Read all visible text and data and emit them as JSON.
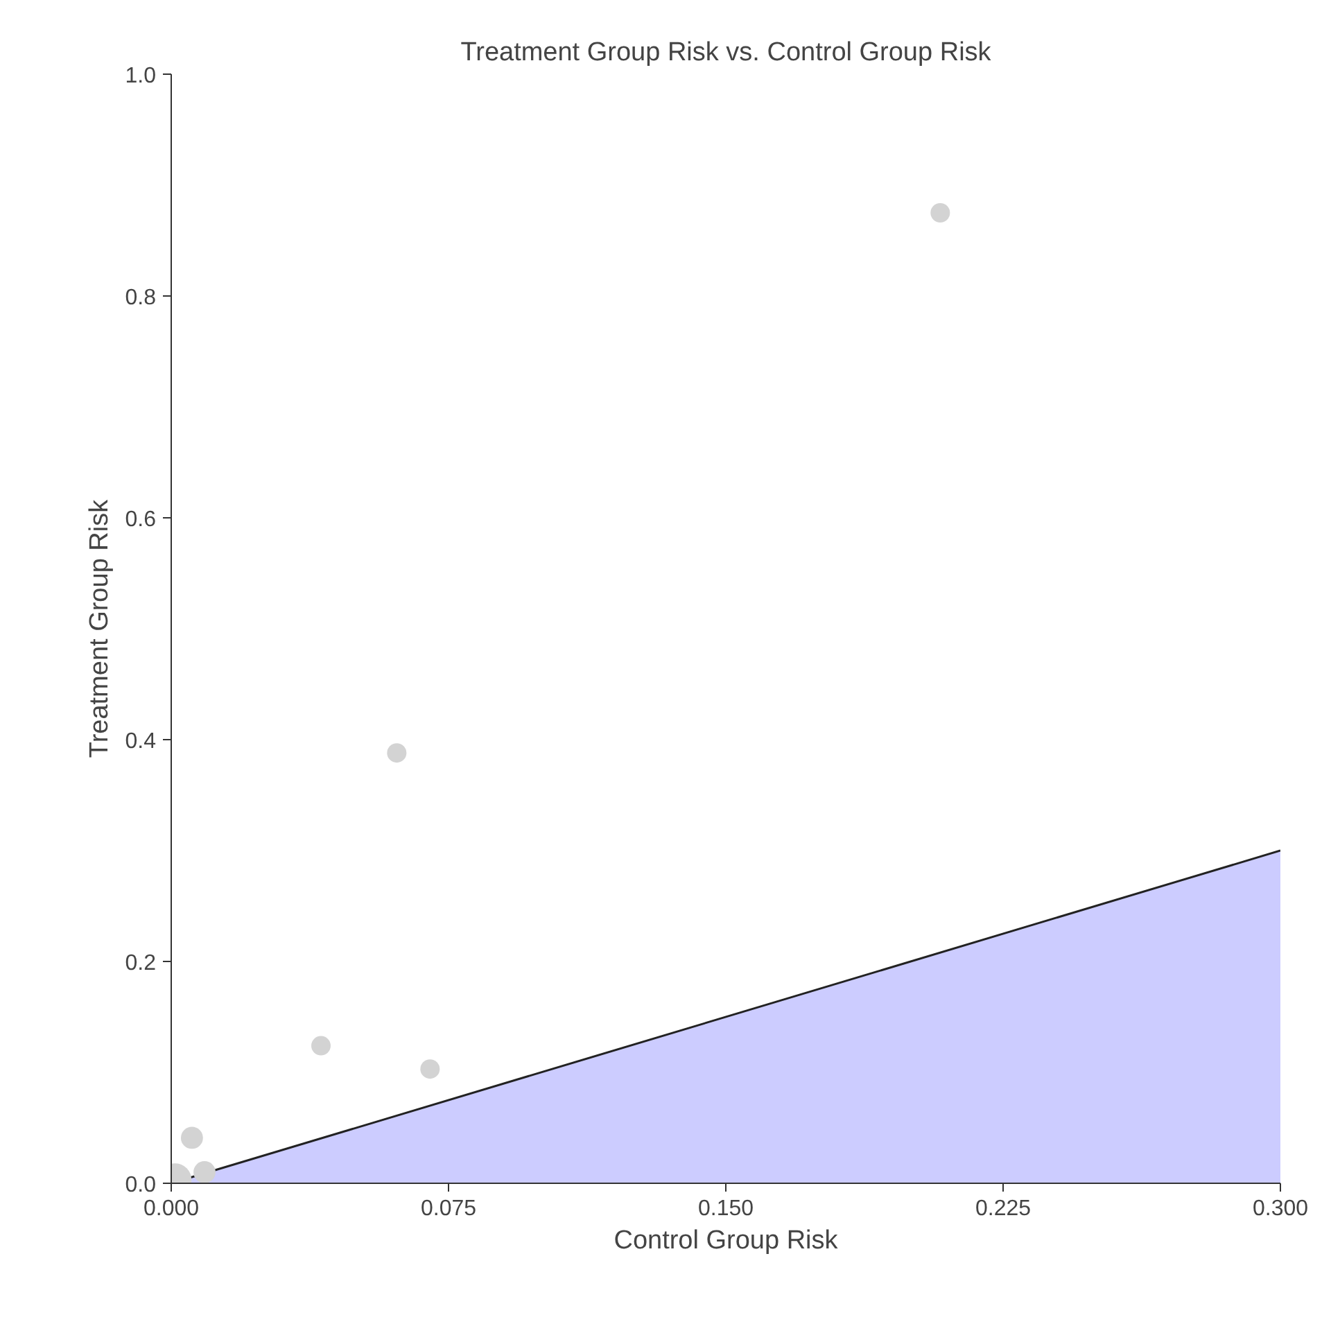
{
  "chart_data": {
    "type": "bubble",
    "title": "Treatment Group Risk vs. Control Group Risk",
    "xlabel": "Control Group Risk",
    "ylabel": "Treatment Group Risk",
    "xlim": [
      0,
      0.3
    ],
    "xticks": [
      {
        "value": 0,
        "label": "0.000"
      },
      {
        "value": 0.075,
        "label": "0.075"
      },
      {
        "value": 0.15,
        "label": "0.150"
      },
      {
        "value": 0.225,
        "label": "0.225"
      },
      {
        "value": 0.3,
        "label": "0.300"
      }
    ],
    "ylim": [
      0,
      1
    ],
    "yticks": [
      {
        "value": 0,
        "label": "0.0"
      },
      {
        "value": 0.2,
        "label": "0.2"
      },
      {
        "value": 0.4,
        "label": "0.4"
      },
      {
        "value": 0.6,
        "label": "0.6"
      },
      {
        "value": 0.8,
        "label": "0.8"
      },
      {
        "value": 1,
        "label": "1.0"
      }
    ],
    "grid": false,
    "series": [
      {
        "type": "area",
        "color": "#ccccff",
        "x": [
          0,
          0.3
        ],
        "values": [
          0,
          0.3
        ]
      },
      {
        "color": "#d3d3d3",
        "x": [
          0.208,
          0.061,
          0.0405,
          0.07,
          0.0056,
          0.009,
          0.001
        ],
        "values": [
          0.875,
          0.388,
          0.124,
          0.103,
          0.041,
          0.01,
          0.003
        ],
        "sizes": [
          0.34,
          0.34,
          0.34,
          0.34,
          0.44,
          0.44,
          1
        ]
      }
    ]
  }
}
